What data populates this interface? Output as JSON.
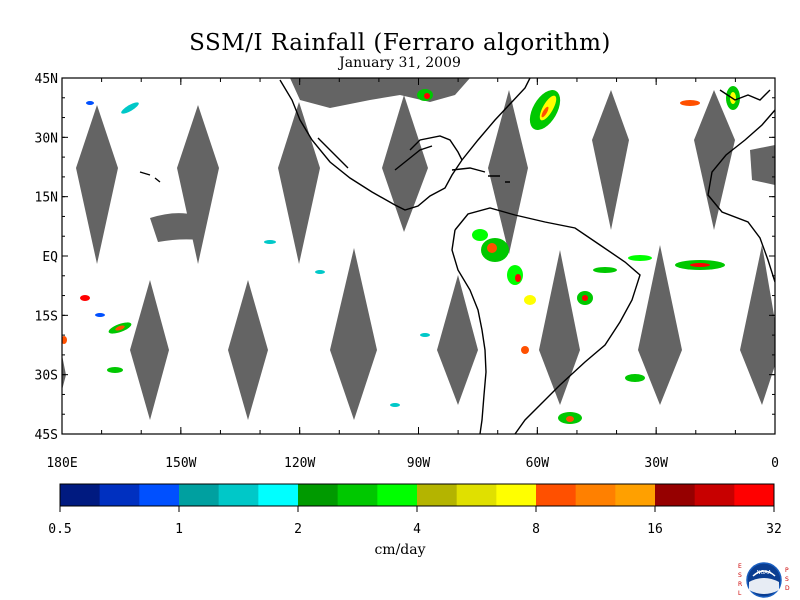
{
  "title": "SSM/I Rainfall (Ferraro algorithm)",
  "subtitle": "January 31, 2009",
  "map": {
    "lat_labels": [
      "45N",
      "30N",
      "15N",
      "EQ",
      "15S",
      "30S",
      "45S"
    ],
    "lon_labels": [
      "180E",
      "150W",
      "120W",
      "90W",
      "60W",
      "30W",
      "0"
    ],
    "swath_gap_color": "#646464",
    "land_outline_color": "#000000"
  },
  "colorbar": {
    "unit": "cm/day",
    "tick_labels": [
      "0.5",
      "1",
      "2",
      "4",
      "8",
      "16",
      "32"
    ],
    "colors": [
      "#001a80",
      "#0030c0",
      "#0050ff",
      "#00a0a0",
      "#00c8c8",
      "#00ffff",
      "#009a00",
      "#00c800",
      "#00ff00",
      "#b4b400",
      "#e0e000",
      "#ffff00",
      "#ff5000",
      "#ff8000",
      "#ffa000",
      "#960000",
      "#c80000",
      "#ff0000"
    ]
  },
  "logo": {
    "left_text": "ESRL",
    "right_text": "PSD",
    "center_text": "NOAA"
  }
}
